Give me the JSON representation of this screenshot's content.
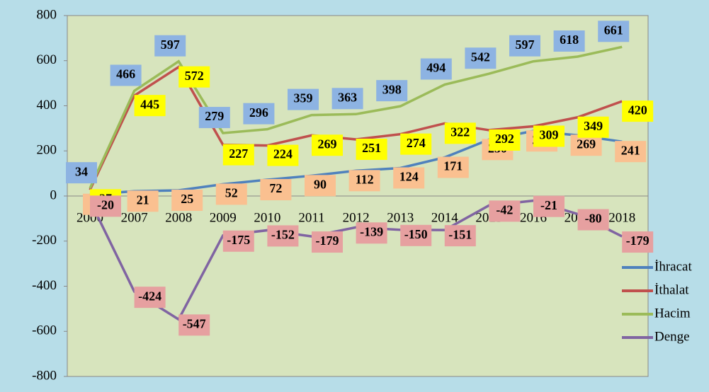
{
  "chart_data": {
    "type": "line",
    "categories": [
      "2000",
      "2007",
      "2008",
      "2009",
      "2010",
      "2011",
      "2012",
      "2013",
      "2014",
      "2015",
      "2016",
      "2017",
      "2018"
    ],
    "series": [
      {
        "name": "İhracat",
        "color": "#4f81bd",
        "label_color": "#fac090",
        "values": [
          7,
          21,
          25,
          52,
          72,
          90,
          112,
          124,
          171,
          250,
          288,
          269,
          241
        ]
      },
      {
        "name": "İthalat",
        "color": "#c0504d",
        "label_color": "#ffff00",
        "values": [
          27,
          445,
          572,
          227,
          224,
          269,
          251,
          274,
          322,
          292,
          309,
          349,
          420
        ]
      },
      {
        "name": "Hacim",
        "color": "#9bbb59",
        "label_color": "#8db3e2",
        "values": [
          34,
          466,
          597,
          279,
          296,
          359,
          363,
          398,
          494,
          542,
          597,
          618,
          661
        ]
      },
      {
        "name": "Denge",
        "color": "#8064a2",
        "label_color": "#e6a0a0",
        "values": [
          -20,
          -424,
          -547,
          -175,
          -152,
          -179,
          -139,
          -150,
          -151,
          -42,
          -21,
          -80,
          -179
        ]
      }
    ],
    "ylim": [
      -800,
      800
    ],
    "yticks": [
      -800,
      -600,
      -400,
      -200,
      0,
      200,
      400,
      600,
      800
    ],
    "legend": "right"
  }
}
